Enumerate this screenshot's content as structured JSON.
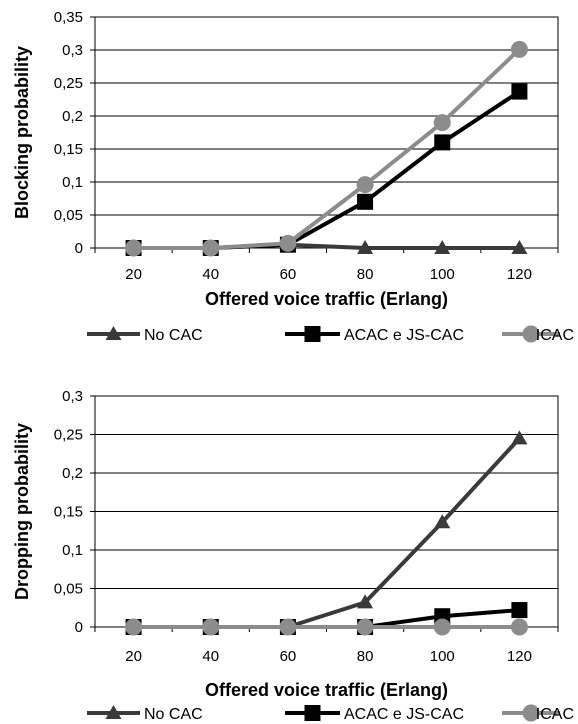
{
  "chart_data": [
    {
      "type": "line",
      "xlabel": "Offered voice traffic (Erlang)",
      "ylabel": "Blocking probability",
      "categories": [
        "20",
        "40",
        "60",
        "80",
        "100",
        "120"
      ],
      "y_ticks": [
        "0",
        "0,05",
        "0,1",
        "0,15",
        "0,2",
        "0,25",
        "0,3",
        "0,35"
      ],
      "ylim": [
        0,
        0.35
      ],
      "grid": "horizontal",
      "legend_position": "bottom",
      "series": [
        {
          "name": "No CAC",
          "marker": "triangle",
          "color": "#3a3a3a",
          "values": [
            0,
            0,
            0.005,
            0,
            0,
            0
          ]
        },
        {
          "name": "ACAC e JS-CAC",
          "marker": "square",
          "color": "#000000",
          "values": [
            0,
            0,
            0.005,
            0.07,
            0.16,
            0.237
          ]
        },
        {
          "name": "ICAC",
          "marker": "circle",
          "color": "#8c8c8c",
          "values": [
            0,
            0,
            0.007,
            0.096,
            0.19,
            0.301
          ]
        }
      ]
    },
    {
      "type": "line",
      "xlabel": "Offered voice traffic (Erlang)",
      "ylabel": "Dropping probability",
      "categories": [
        "20",
        "40",
        "60",
        "80",
        "100",
        "120"
      ],
      "y_ticks": [
        "0",
        "0,05",
        "0,1",
        "0,15",
        "0,2",
        "0,25",
        "0,3"
      ],
      "ylim": [
        0,
        0.3
      ],
      "grid": "horizontal",
      "legend_position": "bottom",
      "series": [
        {
          "name": "No CAC",
          "marker": "triangle",
          "color": "#3a3a3a",
          "values": [
            0,
            0,
            0,
            0.032,
            0.136,
            0.245
          ]
        },
        {
          "name": "ACAC e JS-CAC",
          "marker": "square",
          "color": "#000000",
          "values": [
            0,
            0,
            0,
            0,
            0.014,
            0.022
          ]
        },
        {
          "name": "ICAC",
          "marker": "circle",
          "color": "#8c8c8c",
          "values": [
            0,
            0,
            0,
            0,
            0,
            0
          ]
        }
      ]
    }
  ]
}
